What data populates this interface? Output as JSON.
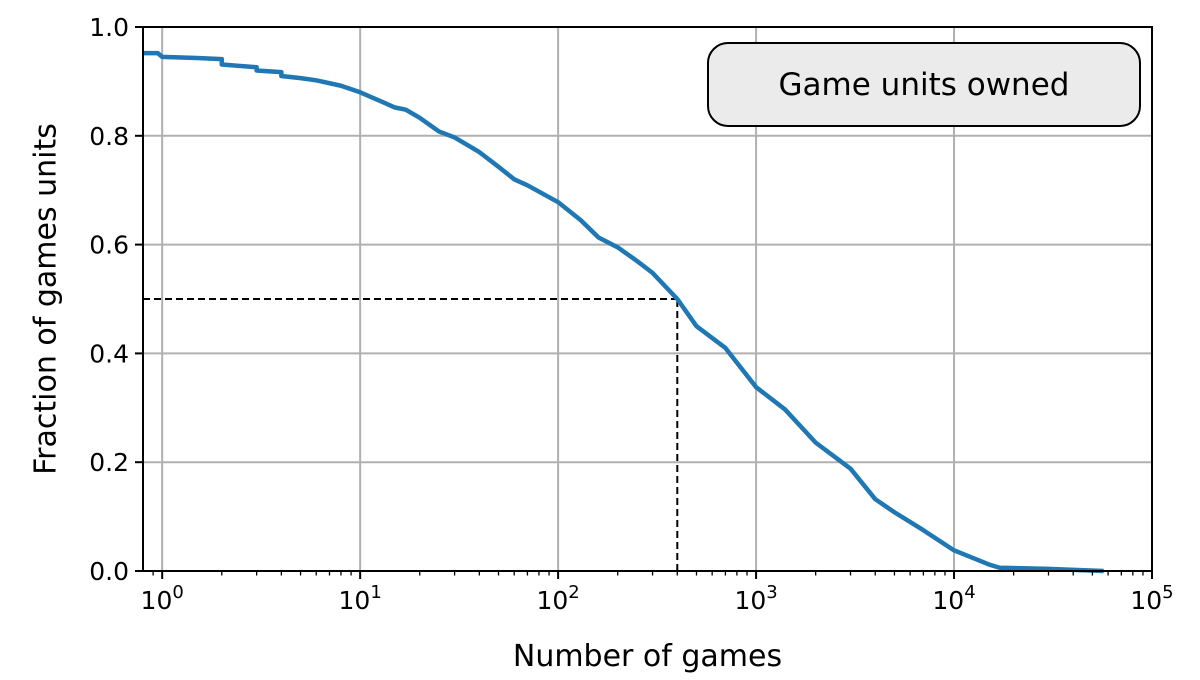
{
  "chart_data": {
    "type": "line",
    "title": "",
    "xlabel": "Number of games",
    "ylabel": "Fraction of games units",
    "x_scale": "log",
    "xlim": [
      0.8,
      100000
    ],
    "ylim": [
      0.0,
      1.0
    ],
    "grid": true,
    "legend_box": {
      "text": "Game units owned",
      "placement": "top-right"
    },
    "x_ticks": [
      {
        "value": 1,
        "base": "10",
        "exp": "0"
      },
      {
        "value": 10,
        "base": "10",
        "exp": "1"
      },
      {
        "value": 100,
        "base": "10",
        "exp": "2"
      },
      {
        "value": 1000,
        "base": "10",
        "exp": "3"
      },
      {
        "value": 10000,
        "base": "10",
        "exp": "4"
      },
      {
        "value": 100000,
        "base": "10",
        "exp": "5"
      }
    ],
    "y_ticks": [
      {
        "value": 0.0,
        "label": "0.0"
      },
      {
        "value": 0.2,
        "label": "0.2"
      },
      {
        "value": 0.4,
        "label": "0.4"
      },
      {
        "value": 0.6,
        "label": "0.6"
      },
      {
        "value": 0.8,
        "label": "0.8"
      },
      {
        "value": 1.0,
        "label": "1.0"
      }
    ],
    "series": [
      {
        "color": "#1f77b4",
        "x": [
          0.8,
          0.95,
          1,
          1.5,
          2,
          2,
          3,
          3,
          4,
          4,
          5,
          6,
          8,
          10,
          13,
          15,
          17,
          20,
          25,
          30,
          40,
          50,
          60,
          70,
          100,
          130,
          160,
          200,
          250,
          300,
          400,
          500,
          700,
          1000,
          1400,
          2000,
          3000,
          4000,
          5000,
          7000,
          10000,
          15000,
          17000,
          30000,
          57000
        ],
        "y": [
          0.952,
          0.952,
          0.945,
          0.943,
          0.941,
          0.931,
          0.926,
          0.92,
          0.917,
          0.91,
          0.906,
          0.902,
          0.892,
          0.88,
          0.862,
          0.852,
          0.848,
          0.833,
          0.808,
          0.797,
          0.77,
          0.743,
          0.72,
          0.709,
          0.678,
          0.645,
          0.613,
          0.595,
          0.57,
          0.548,
          0.5,
          0.45,
          0.41,
          0.338,
          0.297,
          0.236,
          0.188,
          0.132,
          0.108,
          0.075,
          0.038,
          0.012,
          0.006,
          0.004,
          0.0
        ]
      }
    ],
    "reference_lines": [
      {
        "kind": "horizontal",
        "y": 0.5,
        "from_x": 0.8,
        "to_x": 400,
        "color": "#000000",
        "style": "dashed"
      },
      {
        "kind": "vertical",
        "x": 400,
        "from_y": 0.0,
        "to_y": 0.5,
        "color": "#000000",
        "style": "dashed"
      }
    ],
    "colors": {
      "grid": "#b0b0b0",
      "axes": "#000000",
      "legend_fill": "#ebebeb"
    }
  }
}
